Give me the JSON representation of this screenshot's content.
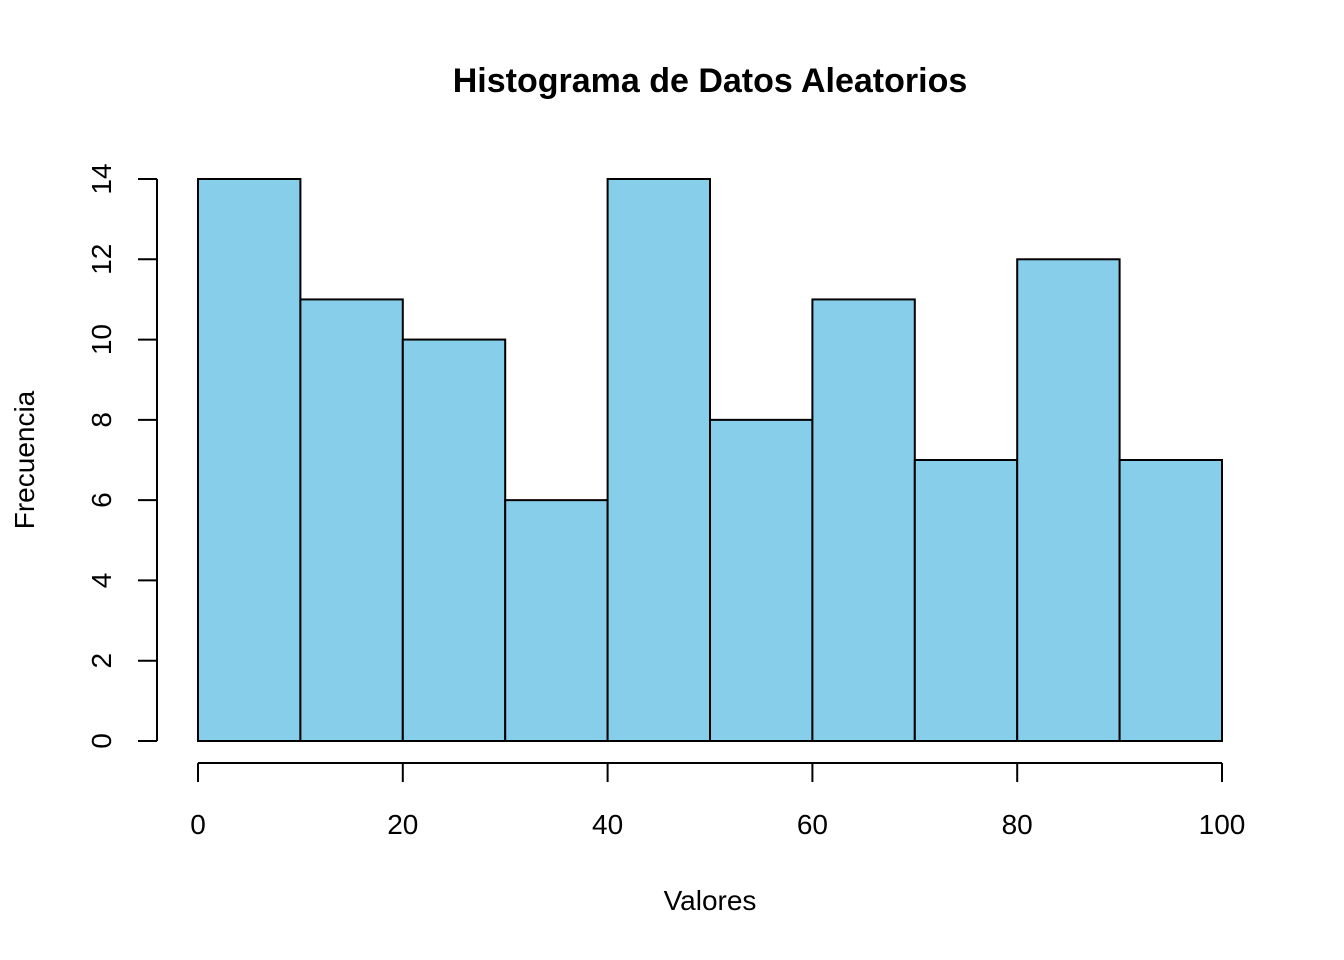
{
  "chart_data": {
    "type": "bar",
    "title": "Histograma de Datos Aleatorios",
    "xlabel": "Valores",
    "ylabel": "Frecuencia",
    "bins": [
      {
        "from": 0,
        "to": 10,
        "count": 14
      },
      {
        "from": 10,
        "to": 20,
        "count": 11
      },
      {
        "from": 20,
        "to": 30,
        "count": 10
      },
      {
        "from": 30,
        "to": 40,
        "count": 6
      },
      {
        "from": 40,
        "to": 50,
        "count": 14
      },
      {
        "from": 50,
        "to": 60,
        "count": 8
      },
      {
        "from": 60,
        "to": 70,
        "count": 11
      },
      {
        "from": 70,
        "to": 80,
        "count": 7
      },
      {
        "from": 80,
        "to": 90,
        "count": 12
      },
      {
        "from": 90,
        "to": 100,
        "count": 7
      }
    ],
    "xlim": [
      0,
      100
    ],
    "ylim": [
      0,
      14
    ],
    "x_ticks": [
      0,
      20,
      40,
      60,
      80,
      100
    ],
    "y_ticks": [
      0,
      2,
      4,
      6,
      8,
      10,
      12,
      14
    ],
    "bar_color": "#87CEEB",
    "border_color": "#000000",
    "grid": false,
    "legend": "none"
  }
}
